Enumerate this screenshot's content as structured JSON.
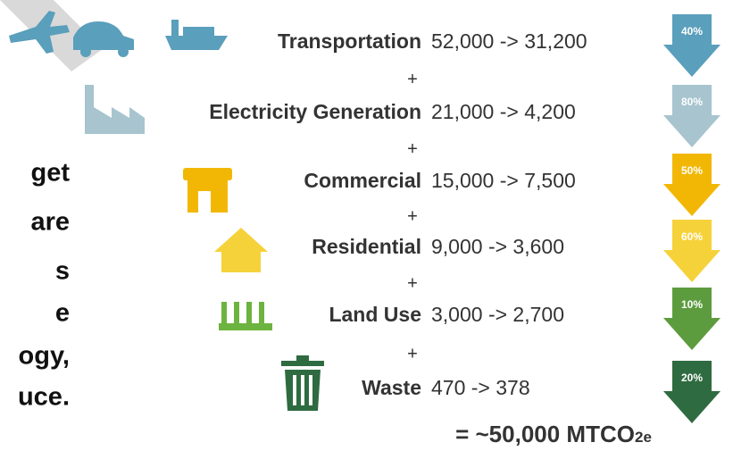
{
  "left_text": [
    "get",
    "are",
    "s",
    "e",
    "ogy,",
    "uce."
  ],
  "separator": "+",
  "rows": [
    {
      "label": "Transportation",
      "values": "52,000 -> 31,200",
      "percent": "40%",
      "color": "#5a9fbb"
    },
    {
      "label": "Electricity Generation",
      "values": "21,000 -> 4,200",
      "percent": "80%",
      "color": "#a7c4cf"
    },
    {
      "label": "Commercial",
      "values": "15,000 -> 7,500",
      "percent": "50%",
      "color": "#f2b705"
    },
    {
      "label": "Residential",
      "values": "9,000 -> 3,600",
      "percent": "60%",
      "color": "#f6d23a"
    },
    {
      "label": "Land Use",
      "values": "3,000 -> 2,700",
      "percent": "10%",
      "color": "#5c9c3e"
    },
    {
      "label": "Waste",
      "values": "470 -> 378",
      "percent": "20%",
      "color": "#2f6b40"
    }
  ],
  "total": {
    "text": "= ~50,000 MTCO",
    "subscript": "2e"
  }
}
